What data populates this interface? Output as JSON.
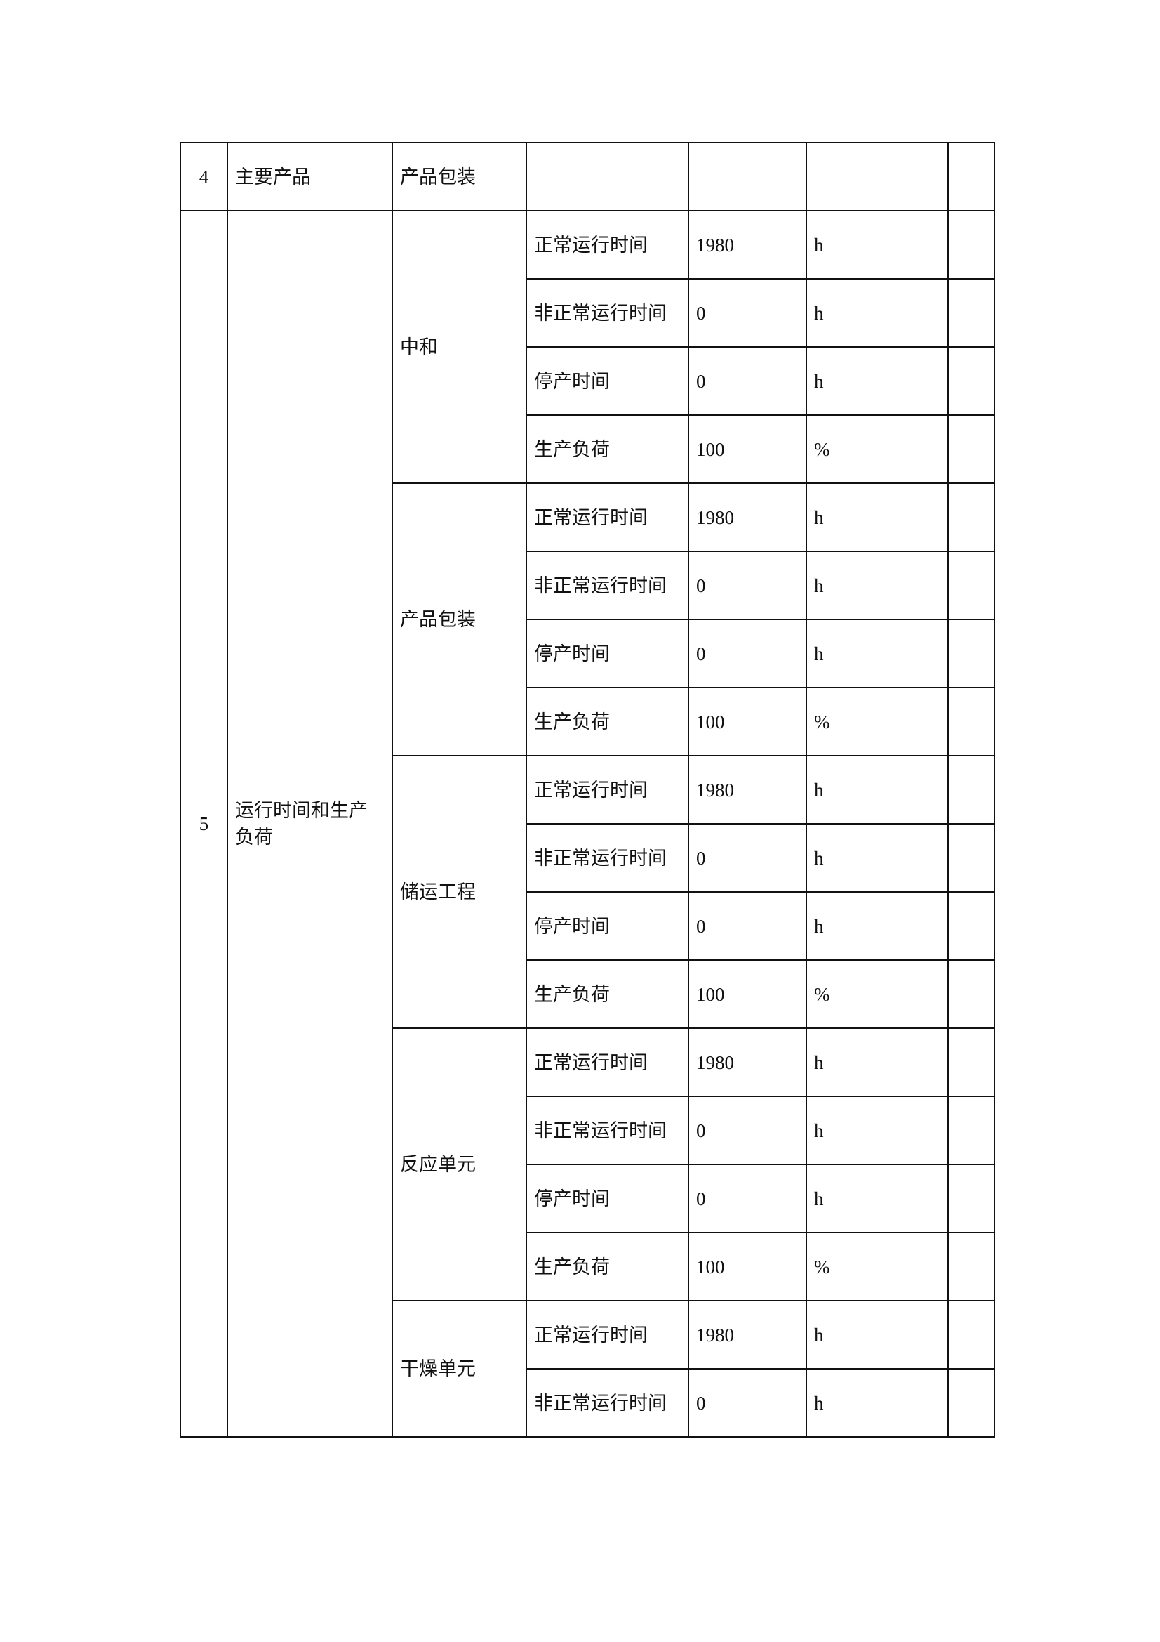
{
  "row4": {
    "no": "4",
    "item": "主要产品",
    "sub": "产品包装"
  },
  "row5": {
    "no": "5",
    "item": "运行时间和生产负荷",
    "groups": [
      {
        "name": "中和",
        "rows": [
          {
            "label": "正常运行时间",
            "value": "1980",
            "unit": "h"
          },
          {
            "label": "非正常运行时间",
            "value": "0",
            "unit": "h"
          },
          {
            "label": "停产时间",
            "value": "0",
            "unit": "h"
          },
          {
            "label": "生产负荷",
            "value": "100",
            "unit": "%"
          }
        ]
      },
      {
        "name": "产品包装",
        "rows": [
          {
            "label": "正常运行时间",
            "value": "1980",
            "unit": "h"
          },
          {
            "label": "非正常运行时间",
            "value": "0",
            "unit": "h"
          },
          {
            "label": "停产时间",
            "value": "0",
            "unit": "h"
          },
          {
            "label": "生产负荷",
            "value": "100",
            "unit": "%"
          }
        ]
      },
      {
        "name": "储运工程",
        "rows": [
          {
            "label": "正常运行时间",
            "value": "1980",
            "unit": "h"
          },
          {
            "label": "非正常运行时间",
            "value": "0",
            "unit": "h"
          },
          {
            "label": "停产时间",
            "value": "0",
            "unit": "h"
          },
          {
            "label": "生产负荷",
            "value": "100",
            "unit": "%"
          }
        ]
      },
      {
        "name": "反应单元",
        "rows": [
          {
            "label": "正常运行时间",
            "value": "1980",
            "unit": "h"
          },
          {
            "label": "非正常运行时间",
            "value": "0",
            "unit": "h"
          },
          {
            "label": "停产时间",
            "value": "0",
            "unit": "h"
          },
          {
            "label": "生产负荷",
            "value": "100",
            "unit": "%"
          }
        ]
      },
      {
        "name": "干燥单元",
        "rows": [
          {
            "label": "正常运行时间",
            "value": "1980",
            "unit": "h"
          },
          {
            "label": "非正常运行时间",
            "value": "0",
            "unit": "h"
          }
        ]
      }
    ]
  }
}
